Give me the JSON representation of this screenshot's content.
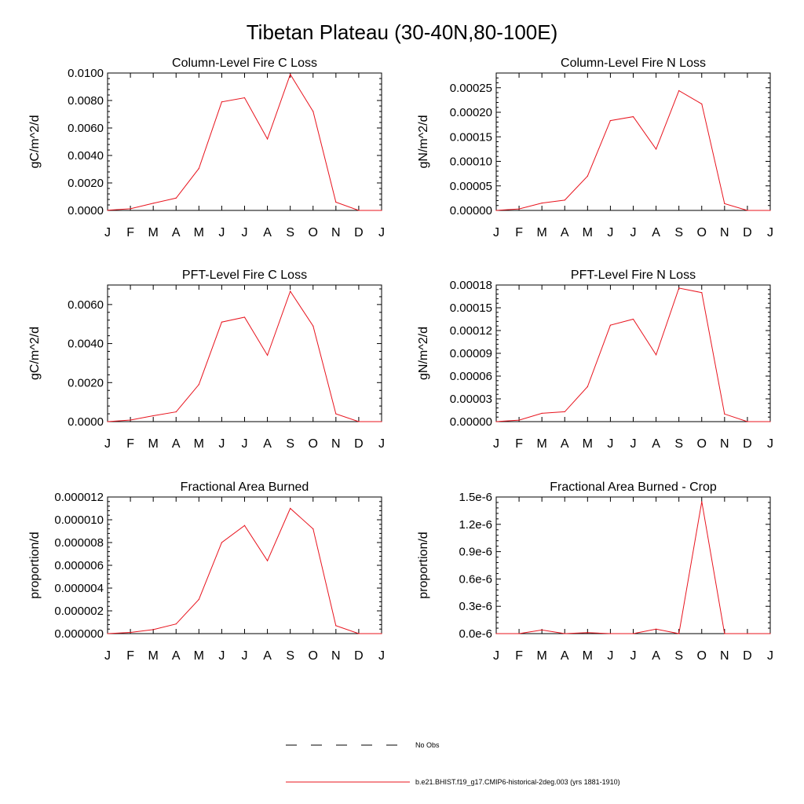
{
  "page_title": "Tibetan Plateau (30-40N,80-100E)",
  "legend": {
    "obs_label": "No Obs",
    "model_label": "b.e21.BHIST.f19_g17.CMIP6-historical-2deg.003 (yrs 1881-1910)",
    "obs_color": "#000000",
    "model_color": "#e8141e"
  },
  "months": [
    "J",
    "F",
    "M",
    "A",
    "M",
    "J",
    "J",
    "A",
    "S",
    "O",
    "N",
    "D",
    "J"
  ],
  "chart_data": [
    {
      "type": "line",
      "title": "Column-Level Fire C Loss",
      "xlabel": "",
      "ylabel": "gC/m^2/d",
      "x": [
        1,
        2,
        3,
        4,
        5,
        6,
        7,
        8,
        9,
        10,
        11,
        12,
        13
      ],
      "ylim": [
        0,
        0.01
      ],
      "yticks": [
        0,
        0.002,
        0.004,
        0.006,
        0.008,
        0.01
      ],
      "yticklabels": [
        "0.0000",
        "0.0020",
        "0.0040",
        "0.0060",
        "0.0080",
        "0.0100"
      ],
      "series": [
        {
          "values": [
            1e-05,
            0.00012,
            0.00052,
            0.0009,
            0.00305,
            0.0079,
            0.0082,
            0.0052,
            0.0099,
            0.0072,
            0.0006,
            0.0,
            0.0
          ]
        }
      ]
    },
    {
      "type": "line",
      "title": "Column-Level Fire N Loss",
      "xlabel": "",
      "ylabel": "gN/m^2/d",
      "x": [
        1,
        2,
        3,
        4,
        5,
        6,
        7,
        8,
        9,
        10,
        11,
        12,
        13
      ],
      "ylim": [
        0,
        0.00028
      ],
      "yticks": [
        0,
        5e-05,
        0.0001,
        0.00015,
        0.0002,
        0.00025
      ],
      "yticklabels": [
        "0.00000",
        "0.00005",
        "0.00010",
        "0.00015",
        "0.00020",
        "0.00025"
      ],
      "series": [
        {
          "values": [
            0.0,
            3e-06,
            1.5e-05,
            2.1e-05,
            7e-05,
            0.000183,
            0.000191,
            0.000125,
            0.000244,
            0.000217,
            1.4e-05,
            0.0,
            0.0
          ]
        }
      ]
    },
    {
      "type": "line",
      "title": "PFT-Level Fire C Loss",
      "xlabel": "",
      "ylabel": "gC/m^2/d",
      "x": [
        1,
        2,
        3,
        4,
        5,
        6,
        7,
        8,
        9,
        10,
        11,
        12,
        13
      ],
      "ylim": [
        0,
        0.007
      ],
      "yticks": [
        0,
        0.002,
        0.004,
        0.006
      ],
      "yticklabels": [
        "0.0000",
        "0.0020",
        "0.0040",
        "0.0060"
      ],
      "series": [
        {
          "values": [
            0.0,
            8e-05,
            0.0003,
            0.0005,
            0.0019,
            0.0051,
            0.00535,
            0.0034,
            0.00668,
            0.0049,
            0.0004,
            0.0,
            0.0
          ]
        }
      ]
    },
    {
      "type": "line",
      "title": "PFT-Level Fire N Loss",
      "xlabel": "",
      "ylabel": "gN/m^2/d",
      "x": [
        1,
        2,
        3,
        4,
        5,
        6,
        7,
        8,
        9,
        10,
        11,
        12,
        13
      ],
      "ylim": [
        0,
        0.00018
      ],
      "yticks": [
        0,
        3e-05,
        6e-05,
        9e-05,
        0.00012,
        0.00015,
        0.00018
      ],
      "yticklabels": [
        "0.00000",
        "0.00003",
        "0.00006",
        "0.00009",
        "0.00012",
        "0.00015",
        "0.00018"
      ],
      "series": [
        {
          "values": [
            0.0,
            2e-06,
            1.1e-05,
            1.3e-05,
            4.6e-05,
            0.000127,
            0.000135,
            8.8e-05,
            0.000176,
            0.00017,
            1e-05,
            0.0,
            0.0
          ]
        }
      ]
    },
    {
      "type": "line",
      "title": "Fractional Area Burned",
      "xlabel": "",
      "ylabel": "proportion/d",
      "x": [
        1,
        2,
        3,
        4,
        5,
        6,
        7,
        8,
        9,
        10,
        11,
        12,
        13
      ],
      "ylim": [
        0,
        1.2e-05
      ],
      "yticks": [
        0,
        2e-06,
        4e-06,
        6e-06,
        8e-06,
        1e-05,
        1.2e-05
      ],
      "yticklabels": [
        "0.000000",
        "0.000002",
        "0.000004",
        "0.000006",
        "0.000008",
        "0.000010",
        "0.000012"
      ],
      "series": [
        {
          "values": [
            0.0,
            1e-07,
            3.5e-07,
            8.5e-07,
            3e-06,
            8e-06,
            9.5e-06,
            6.4e-06,
            1.1e-05,
            9.2e-06,
            7e-07,
            0.0,
            0.0
          ]
        }
      ]
    },
    {
      "type": "line",
      "title": "Fractional Area Burned - Crop",
      "xlabel": "",
      "ylabel": "proportion/d",
      "x": [
        1,
        2,
        3,
        4,
        5,
        6,
        7,
        8,
        9,
        10,
        11,
        12,
        13
      ],
      "ylim": [
        0,
        1.5e-06
      ],
      "yticks": [
        0,
        3e-07,
        6e-07,
        9e-07,
        1.2e-06,
        1.5e-06
      ],
      "yticklabels": [
        "0.0e-6",
        "0.3e-6",
        "0.6e-6",
        "0.9e-6",
        "1.2e-6",
        "1.5e-6"
      ],
      "series": [
        {
          "values": [
            0.0,
            0.0,
            4e-08,
            0.0,
            1e-08,
            0.0,
            0.0,
            5e-08,
            0.0,
            1.45e-06,
            0.0,
            0.0,
            0.0
          ]
        }
      ]
    }
  ]
}
